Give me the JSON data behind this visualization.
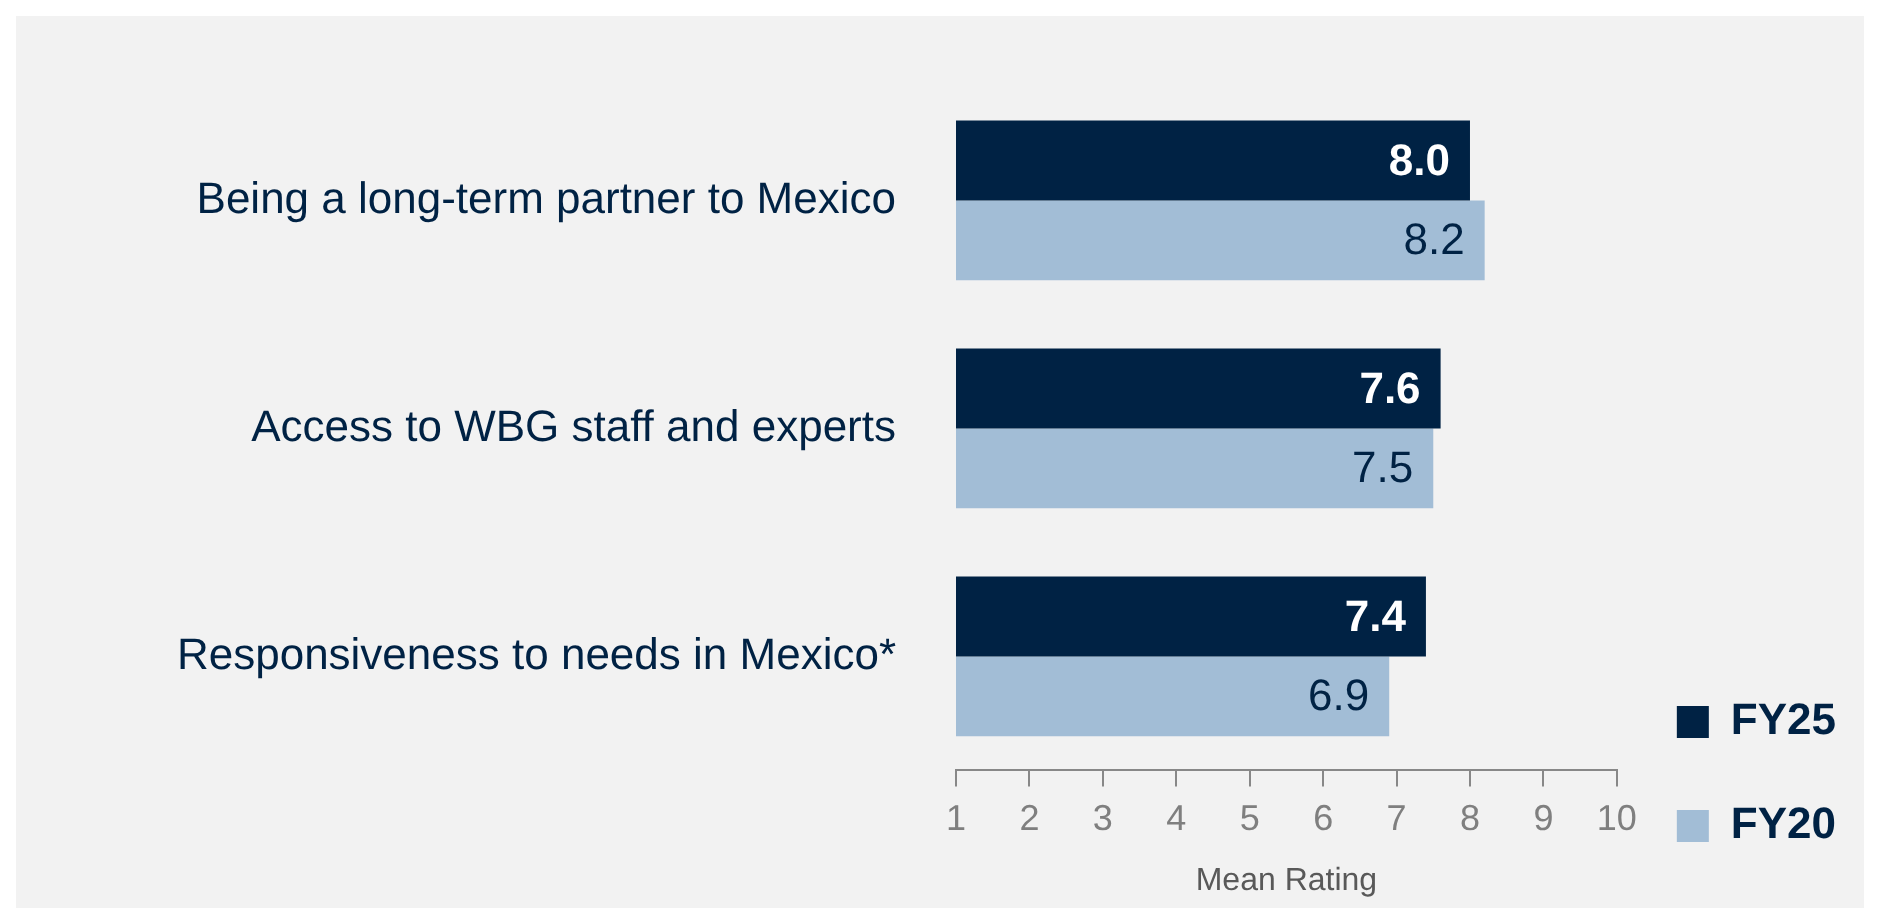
{
  "chart_data": {
    "type": "bar",
    "orientation": "horizontal",
    "xlabel": "Mean Rating",
    "categories": [
      "Being a long-term partner to Mexico",
      "Access to WBG staff and experts",
      "Responsiveness to needs in Mexico*"
    ],
    "series": [
      {
        "name": "FY25",
        "color": "#002244",
        "values": [
          8.0,
          7.6,
          7.4
        ]
      },
      {
        "name": "FY20",
        "color": "#a2bdd6",
        "values": [
          8.2,
          7.5,
          6.9
        ]
      }
    ],
    "value_labels": [
      [
        "8.0",
        "7.6",
        "7.4"
      ],
      [
        "8.2",
        "7.5",
        "6.9"
      ]
    ],
    "xlim": [
      1,
      10
    ],
    "xticks": [
      1,
      2,
      3,
      4,
      5,
      6,
      7,
      8,
      9,
      10
    ],
    "grid": false,
    "legend": "bottom right"
  }
}
